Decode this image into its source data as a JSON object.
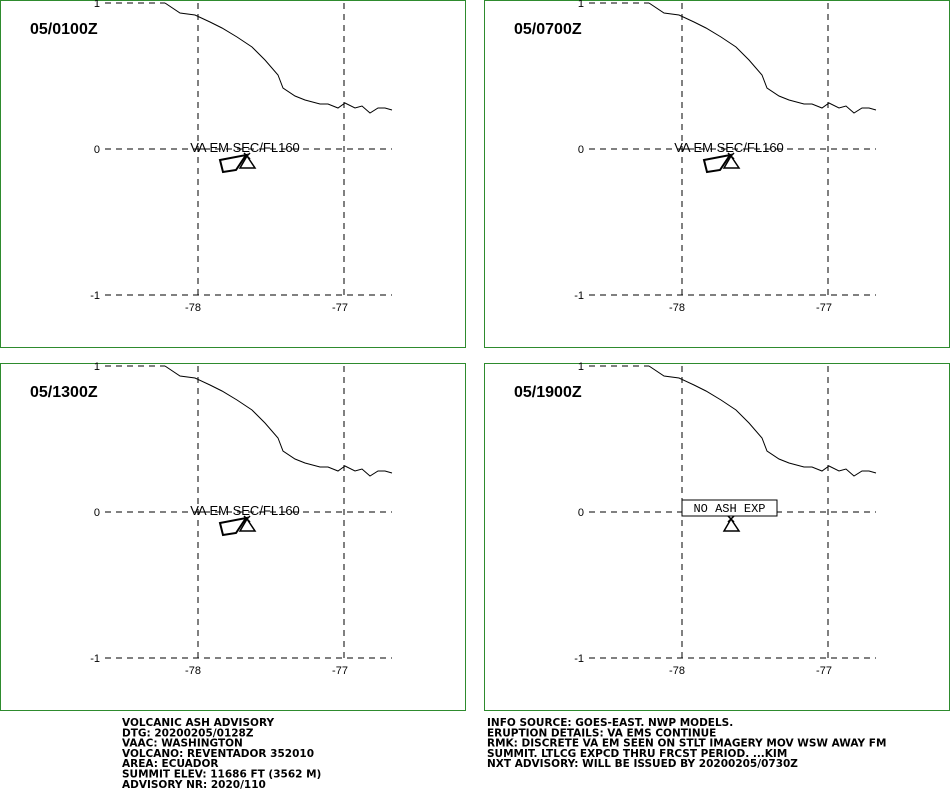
{
  "panels": [
    {
      "time": "05/0100Z",
      "annotation": "VA EM SEC/FL160",
      "ash": true
    },
    {
      "time": "05/0700Z",
      "annotation": "VA EM SEC/FL160",
      "ash": true
    },
    {
      "time": "05/1300Z",
      "annotation": "VA EM SEC/FL160",
      "ash": true
    },
    {
      "time": "05/1900Z",
      "annotation": "NO ASH EXP",
      "ash": false
    }
  ],
  "lat_labels": [
    "1",
    "0",
    "-1"
  ],
  "lon_labels": [
    "-78",
    "-77"
  ],
  "advisory_left": [
    "VOLCANIC ASH ADVISORY",
    "DTG: 20200205/0128Z",
    "VAAC: WASHINGTON",
    "VOLCANO: REVENTADOR 352010",
    "AREA: ECUADOR",
    "SUMMIT ELEV: 11686 FT (3562 M)",
    "ADVISORY NR: 2020/110"
  ],
  "advisory_right": [
    "INFO SOURCE: GOES-EAST. NWP MODELS.",
    "ERUPTION DETAILS: VA EMS CONTINUE",
    "RMK: DISCRETE VA EM SEEN ON STLT IMAGERY MOV WSW AWAY FM",
    "SUMMIT. LTLCG EXPCD THRU FRCST PERIOD. ...KIM",
    "NXT ADVISORY: WILL BE ISSUED BY 20200205/0730Z"
  ]
}
